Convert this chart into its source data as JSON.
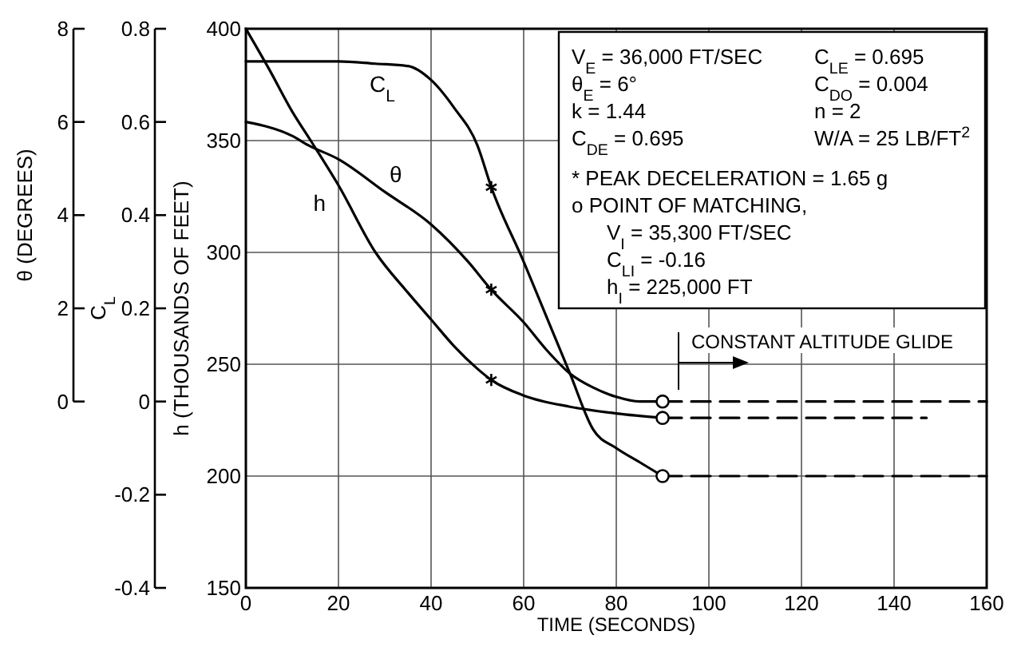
{
  "chart_data": {
    "type": "line",
    "xlabel": "TIME (SECONDS)",
    "ylabel": "h (THOUSANDS OF FEET)",
    "y2label": "C$_{L}$",
    "y3label": "θ (DEGREES)",
    "xlim": [
      0,
      160
    ],
    "xticks": [
      0,
      20,
      40,
      60,
      80,
      100,
      120,
      140,
      160
    ],
    "ylim": [
      150,
      400
    ],
    "yticks": [
      150,
      200,
      250,
      300,
      350,
      400
    ],
    "y2lim": [
      -0.4,
      0.8
    ],
    "y2ticks": [
      -0.4,
      -0.2,
      0,
      0.2,
      0.4,
      0.6,
      0.8
    ],
    "y3lim": [
      0,
      8
    ],
    "y3ticks": [
      0,
      2,
      4,
      6,
      8
    ],
    "grid": true,
    "series": [
      {
        "name": "C$_{L}$",
        "color": "#000000",
        "axis": "y2",
        "x": [
          0,
          10,
          20,
          28,
          35,
          40,
          45,
          50,
          53,
          60,
          65,
          70,
          75,
          80,
          85,
          90
        ],
        "values": [
          0.73,
          0.73,
          0.73,
          0.725,
          0.72,
          0.69,
          0.63,
          0.55,
          0.46,
          0.3,
          0.18,
          0.06,
          -0.06,
          -0.1,
          -0.13,
          -0.16
        ]
      },
      {
        "name": "θ",
        "color": "#000000",
        "axis": "y3",
        "x": [
          0,
          10,
          13.5,
          20,
          30,
          40,
          48,
          53,
          60,
          65,
          70,
          75,
          80,
          85,
          90
        ],
        "values": [
          6.0,
          5.7,
          5.5,
          5.2,
          4.5,
          3.8,
          3.0,
          2.4,
          1.7,
          1.1,
          0.6,
          0.3,
          0.1,
          0.0,
          0.0
        ]
      },
      {
        "name": "h",
        "color": "#000000",
        "axis": "y",
        "x": [
          0,
          5,
          10,
          14,
          20,
          28,
          35,
          40,
          45,
          50,
          53,
          60,
          70,
          80,
          90
        ],
        "values": [
          400,
          382,
          363,
          350,
          330,
          300,
          282,
          270,
          258,
          248,
          243,
          236,
          231,
          228,
          226
        ]
      },
      {
        "color": "#000000",
        "axis": "y3",
        "line_style": "dashed",
        "x": [
          90,
          160
        ],
        "values": [
          0.0,
          0.0
        ]
      },
      {
        "color": "#000000",
        "axis": "y",
        "line_style": "dashed",
        "x": [
          90,
          147
        ],
        "values": [
          226,
          226
        ]
      },
      {
        "color": "#000000",
        "axis": "y2",
        "line_style": "dashed",
        "x": [
          90,
          160
        ],
        "values": [
          -0.16,
          -0.16
        ]
      },
      {
        "type": "scatter",
        "marker": "cross",
        "color": "#000000",
        "axis": "y2",
        "x": [
          53
        ],
        "values": [
          0.46
        ]
      },
      {
        "type": "scatter",
        "marker": "cross",
        "color": "#000000",
        "axis": "y3",
        "x": [
          53
        ],
        "values": [
          2.4
        ]
      },
      {
        "type": "scatter",
        "marker": "cross",
        "color": "#000000",
        "axis": "y",
        "x": [
          53
        ],
        "values": [
          243
        ]
      },
      {
        "type": "scatter",
        "marker": "circle",
        "color": "#000000",
        "axis": "y2",
        "x": [
          90
        ],
        "values": [
          -0.16
        ]
      },
      {
        "type": "scatter",
        "marker": "circle",
        "color": "#000000",
        "axis": "y3",
        "x": [
          90
        ],
        "values": [
          0.0
        ]
      },
      {
        "type": "scatter",
        "marker": "circle",
        "color": "#000000",
        "axis": "y",
        "x": [
          90
        ],
        "values": [
          226
        ]
      }
    ],
    "annotations": [
      "V$_{E}$ = 36,000 FT/SEC",
      "C$_{LE}$ = 0.695",
      "θ$_{E}$ = 6°",
      "C$_{DO}$ = 0.004",
      "k = 1.44",
      "n = 2",
      "C$_{DE}$ = 0.695",
      "W/A = 25 LB/FT$^{2}$",
      "* PEAK DECELERATION = 1.65 g",
      "o POINT OF MATCHING,",
      "V$_{I}$ = 35,300 FT/SEC",
      "C$_{LI}$ = -0.16",
      "h$_{I}$ = 225,000 FT",
      "CONSTANT ALTITUDE GLIDE"
    ]
  }
}
